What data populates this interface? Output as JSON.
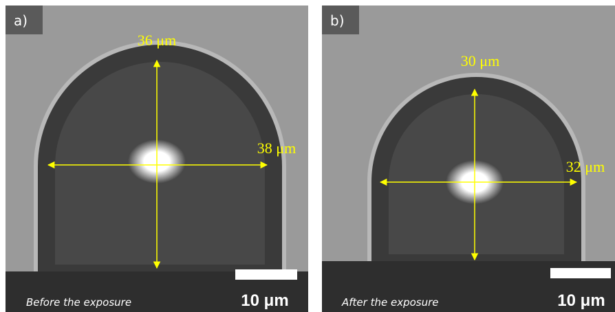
{
  "panels": [
    {
      "label": "a)",
      "height_text": "36 μm",
      "width_text": "38 μm",
      "scale_text": "10 μm",
      "caption": "Before the exposure"
    },
    {
      "label": "b)",
      "height_text": "30 μm",
      "width_text": "32 μm",
      "scale_text": "10 μm",
      "caption": "After the exposure"
    }
  ]
}
